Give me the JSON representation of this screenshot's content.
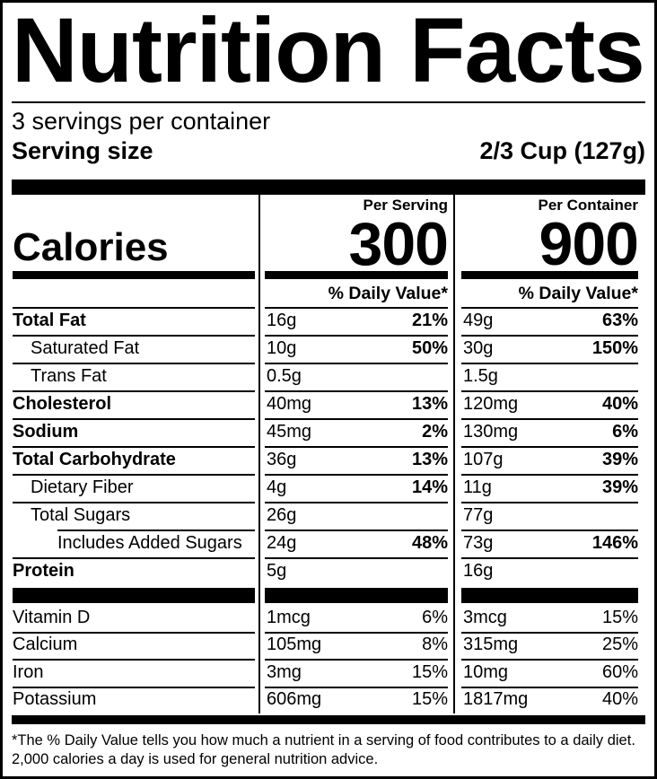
{
  "header": {
    "title": "Nutrition Facts",
    "servings_per_container": "3 servings per container",
    "serving_size_label": "Serving size",
    "serving_size_value": "2/3 Cup (127g)"
  },
  "calories": {
    "label": "Calories",
    "per_serving_header": "Per Serving",
    "per_serving_value": "300",
    "per_container_header": "Per Container",
    "per_container_value": "900"
  },
  "daily_value": {
    "serving_header": "% Daily Value*",
    "container_header": "% Daily Value*"
  },
  "nutrients": [
    {
      "name": "Total Fat",
      "serving_amount": "16g",
      "serving_dv": "21%",
      "container_amount": "49g",
      "container_dv": "63%"
    },
    {
      "name": "Saturated Fat",
      "serving_amount": "10g",
      "serving_dv": "50%",
      "container_amount": "30g",
      "container_dv": "150%"
    },
    {
      "name": "Trans Fat",
      "serving_amount": "0.5g",
      "serving_dv": "",
      "container_amount": "1.5g",
      "container_dv": ""
    },
    {
      "name": "Cholesterol",
      "serving_amount": "40mg",
      "serving_dv": "13%",
      "container_amount": "120mg",
      "container_dv": "40%"
    },
    {
      "name": "Sodium",
      "serving_amount": "45mg",
      "serving_dv": "2%",
      "container_amount": "130mg",
      "container_dv": "6%"
    },
    {
      "name": "Total Carbohydrate",
      "serving_amount": "36g",
      "serving_dv": "13%",
      "container_amount": "107g",
      "container_dv": "39%"
    },
    {
      "name": "Dietary Fiber",
      "serving_amount": "4g",
      "serving_dv": "14%",
      "container_amount": "11g",
      "container_dv": "39%"
    },
    {
      "name": "Total Sugars",
      "serving_amount": "26g",
      "serving_dv": "",
      "container_amount": "77g",
      "container_dv": ""
    },
    {
      "name": "Includes Added Sugars",
      "serving_amount": "24g",
      "serving_dv": "48%",
      "container_amount": "73g",
      "container_dv": "146%"
    },
    {
      "name": "Protein",
      "serving_amount": "5g",
      "serving_dv": "",
      "container_amount": "16g",
      "container_dv": ""
    }
  ],
  "vitamins": [
    {
      "name": "Vitamin D",
      "serving_amount": "1mcg",
      "serving_dv": "6%",
      "container_amount": "3mcg",
      "container_dv": "15%"
    },
    {
      "name": "Calcium",
      "serving_amount": "105mg",
      "serving_dv": "8%",
      "container_amount": "315mg",
      "container_dv": "25%"
    },
    {
      "name": "Iron",
      "serving_amount": "3mg",
      "serving_dv": "15%",
      "container_amount": "10mg",
      "container_dv": "60%"
    },
    {
      "name": "Potassium",
      "serving_amount": "606mg",
      "serving_dv": "15%",
      "container_amount": "1817mg",
      "container_dv": "40%"
    }
  ],
  "footnote": {
    "line1": "*The % Daily Value tells you how much a nutrient in a serving of food contributes to a daily diet.",
    "line2": "2,000 calories a day is used for general nutrition advice."
  },
  "colors": {
    "ink": "#000000",
    "paper": "#ffffff"
  }
}
